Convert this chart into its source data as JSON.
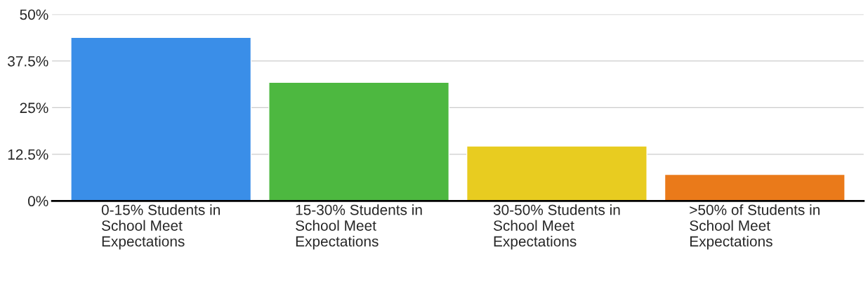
{
  "chart_data": {
    "type": "bar",
    "categories": [
      "0-15% Students in\nSchool Meet\nExpectations",
      "15-30% Students in\nSchool Meet\nExpectations",
      "30-50% Students in\nSchool Meet\nExpectations",
      ">50% of Students in\nSchool Meet\nExpectations"
    ],
    "values": [
      43.8,
      31.8,
      14.7,
      7.1
    ],
    "colors": [
      "#3a8ee8",
      "#4db840",
      "#e8cc20",
      "#ea7a1a"
    ],
    "ylim": [
      0,
      50
    ],
    "yticks": [
      {
        "value": 0,
        "label": "0%"
      },
      {
        "value": 12.5,
        "label": "12.5%"
      },
      {
        "value": 25,
        "label": "25%"
      },
      {
        "value": 37.5,
        "label": "37.5%"
      },
      {
        "value": 50,
        "label": "50%"
      }
    ],
    "grid": "y"
  }
}
